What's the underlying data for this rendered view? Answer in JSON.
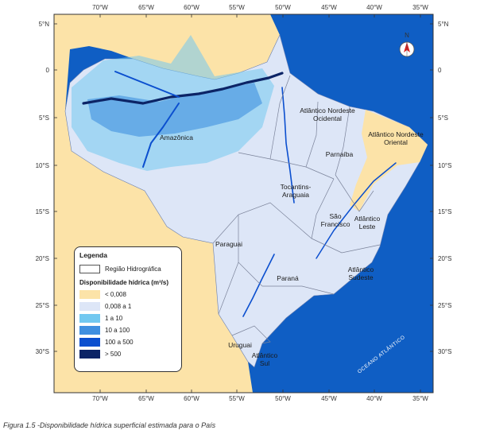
{
  "axes": {
    "longitude_labels": [
      "70°W",
      "65°W",
      "60°W",
      "55°W",
      "50°W",
      "45°W",
      "40°W",
      "35°W"
    ],
    "latitude_labels": [
      "5°N",
      "0",
      "5°S",
      "10°S",
      "15°S",
      "20°S",
      "25°S",
      "30°S"
    ]
  },
  "regions": [
    {
      "id": "amazonica",
      "lines": [
        "Amazônica"
      ]
    },
    {
      "id": "atl-no",
      "lines": [
        "Atlântico Nordeste",
        "Ocidental"
      ]
    },
    {
      "id": "atl-nor",
      "lines": [
        "Atlântico Nordeste",
        "Oriental"
      ]
    },
    {
      "id": "parnaiba",
      "lines": [
        "Parnaíba"
      ]
    },
    {
      "id": "tocantins",
      "lines": [
        "Tocantins-",
        "Araguaia"
      ]
    },
    {
      "id": "sao-francisco",
      "lines": [
        "São",
        "Francisco"
      ]
    },
    {
      "id": "atl-leste",
      "lines": [
        "Atlântico",
        "Leste"
      ]
    },
    {
      "id": "paraguai",
      "lines": [
        "Paraguai"
      ]
    },
    {
      "id": "parana",
      "lines": [
        "Paraná"
      ]
    },
    {
      "id": "atl-sudeste",
      "lines": [
        "Atlântico",
        "Sudeste"
      ]
    },
    {
      "id": "uruguai",
      "lines": [
        "Uruguai"
      ]
    },
    {
      "id": "atl-sul",
      "lines": [
        "Atlântico",
        "Sul"
      ]
    }
  ],
  "ocean_label": "OCEANO ATLÂNTICO",
  "north_arrow": {
    "label": "N",
    "icon": "north-arrow-icon"
  },
  "legend": {
    "title": "Legenda",
    "boundary_label": "Região Hidrográfica",
    "subtitle": "Disponibilidade hídrica (m³/s)",
    "classes": [
      {
        "label": "< 0,008",
        "color": "#fce3a8"
      },
      {
        "label": "0,008 a 1",
        "color": "#dde6f7"
      },
      {
        "label": "1 a 10",
        "color": "#72c8f0"
      },
      {
        "label": "10 a 100",
        "color": "#3f8fe0"
      },
      {
        "label": "100 a 500",
        "color": "#0b4fcf"
      },
      {
        "label": "> 500",
        "color": "#0c2466"
      }
    ]
  },
  "colors": {
    "ocean": "#0f5ec4",
    "neighbor_land": "#fce3a8",
    "frame": "#333333"
  },
  "caption": "Figura 1.5 -Disponibilidade hídrica superficial estimada para o País"
}
